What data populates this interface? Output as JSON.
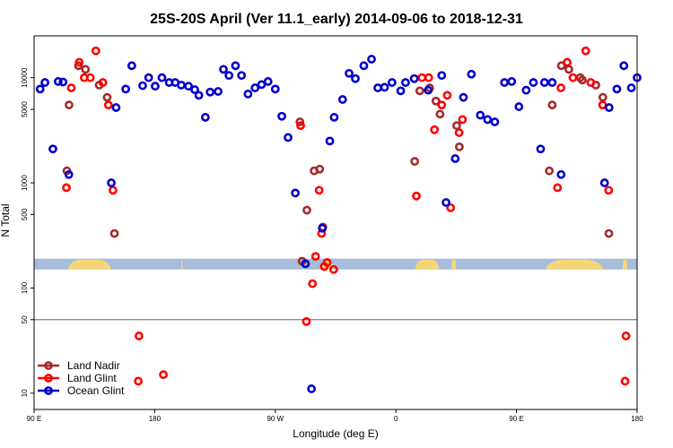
{
  "chart_data": {
    "type": "scatter",
    "title": "25S-20S April (Ver 11.1_early)   2014-09-06 to 2018-12-31",
    "xlabel": "Longitude (deg E)",
    "ylabel": "N Total",
    "x_scale": "linear",
    "y_scale": "log",
    "xlim": [
      90,
      340
    ],
    "ylim": [
      7,
      25000
    ],
    "x_ticks": [
      {
        "value": 90,
        "label": "90 E"
      },
      {
        "value": 140,
        "label": "180"
      },
      {
        "value": 190,
        "label": "90 W"
      },
      {
        "value": 240,
        "label": "0"
      },
      {
        "value": 290,
        "label": "90 E"
      },
      {
        "value": 340,
        "label": "180"
      }
    ],
    "y_ticks": [
      {
        "value": 10,
        "label": "10"
      },
      {
        "value": 50,
        "label": "50"
      },
      {
        "value": 100,
        "label": "100"
      },
      {
        "value": 500,
        "label": "500"
      },
      {
        "value": 1000,
        "label": "1000"
      },
      {
        "value": 5000,
        "label": "5000"
      },
      {
        "value": 10000,
        "label": "10000"
      }
    ],
    "reference_line": {
      "y": 50,
      "color": "#808080"
    },
    "map_strip": {
      "y_range": [
        150,
        190
      ],
      "ocean_color": "#a6bddb",
      "land_color": "#f5d67a"
    },
    "legend": {
      "position": "bottom-left"
    },
    "series": [
      {
        "name": "Land Nadir",
        "color": "#a52a2a",
        "points": [
          [
            103.6,
            1300
          ],
          [
            104.5,
            5500
          ],
          [
            108.4,
            13000
          ],
          [
            111.3,
            12000
          ],
          [
            117,
            8500
          ],
          [
            120.3,
            6500
          ],
          [
            123.3,
            330
          ],
          [
            200.2,
            3800
          ],
          [
            201.1,
            180
          ],
          [
            203.1,
            550
          ],
          [
            206.1,
            1300
          ],
          [
            208.4,
            1350
          ],
          [
            209.7,
            380
          ],
          [
            247.8,
            1600
          ],
          [
            249.9,
            7500
          ],
          [
            254,
            8000
          ],
          [
            256.6,
            6000
          ],
          [
            258.3,
            4500
          ],
          [
            265.2,
            3500
          ],
          [
            266.3,
            2200
          ],
          [
            303.6,
            1300
          ],
          [
            304.8,
            5500
          ],
          [
            308.6,
            13000
          ],
          [
            311.7,
            12000
          ],
          [
            316.4,
            10000
          ],
          [
            317.3,
            9500
          ],
          [
            322.9,
            8500
          ],
          [
            325.8,
            6500
          ],
          [
            328.3,
            330
          ]
        ]
      },
      {
        "name": "Land Glint",
        "color": "#ff0000",
        "points": [
          [
            103.4,
            900
          ],
          [
            105.4,
            8000
          ],
          [
            108.7,
            14000
          ],
          [
            110.8,
            10000
          ],
          [
            113.3,
            10000
          ],
          [
            115.6,
            18000
          ],
          [
            118.5,
            9000
          ],
          [
            120.8,
            5500
          ],
          [
            122.7,
            850
          ],
          [
            133.5,
            35
          ],
          [
            133.2,
            13
          ],
          [
            143.6,
            15
          ],
          [
            200.5,
            3500
          ],
          [
            206.7,
            200
          ],
          [
            211.5,
            175
          ],
          [
            210.3,
            160
          ],
          [
            214.2,
            150
          ],
          [
            205.4,
            110
          ],
          [
            202.9,
            48
          ],
          [
            209.2,
            330
          ],
          [
            208.2,
            850
          ],
          [
            248.5,
            750
          ],
          [
            250.8,
            10000
          ],
          [
            253.6,
            10000
          ],
          [
            256,
            3200
          ],
          [
            259,
            5500
          ],
          [
            261.3,
            6800
          ],
          [
            262.7,
            580
          ],
          [
            266.2,
            3000
          ],
          [
            267.6,
            4000
          ],
          [
            307,
            900
          ],
          [
            308.4,
            8000
          ],
          [
            311,
            14000
          ],
          [
            313.4,
            10000
          ],
          [
            318.7,
            18000
          ],
          [
            320.8,
            9000
          ],
          [
            325.7,
            5500
          ],
          [
            328.2,
            850
          ],
          [
            335.4,
            35
          ],
          [
            335,
            13
          ]
        ]
      },
      {
        "name": "Ocean Glint",
        "color": "#0000cc",
        "points": [
          [
            92.5,
            7800
          ],
          [
            94.5,
            9000
          ],
          [
            97.8,
            2100
          ],
          [
            100,
            9200
          ],
          [
            102,
            9100
          ],
          [
            104.4,
            1200
          ],
          [
            122,
            1000
          ],
          [
            124,
            5200
          ],
          [
            128,
            7800
          ],
          [
            130.5,
            13000
          ],
          [
            135,
            8400
          ],
          [
            137.5,
            10000
          ],
          [
            140.2,
            8300
          ],
          [
            143,
            10000
          ],
          [
            146,
            9000
          ],
          [
            148.5,
            9000
          ],
          [
            151,
            8500
          ],
          [
            154,
            8300
          ],
          [
            156.6,
            7700
          ],
          [
            158.3,
            6800
          ],
          [
            161,
            4200
          ],
          [
            163,
            7300
          ],
          [
            166.3,
            7400
          ],
          [
            168.5,
            12000
          ],
          [
            170.8,
            10500
          ],
          [
            173.5,
            13000
          ],
          [
            176,
            10500
          ],
          [
            178.7,
            7000
          ],
          [
            181.6,
            8000
          ],
          [
            184.3,
            8600
          ],
          [
            187,
            9200
          ],
          [
            190,
            7800
          ],
          [
            192.7,
            4300
          ],
          [
            195.3,
            2700
          ],
          [
            198.3,
            800
          ],
          [
            202.5,
            170
          ],
          [
            205,
            11
          ],
          [
            209.5,
            370
          ],
          [
            212.6,
            2500
          ],
          [
            214.4,
            4200
          ],
          [
            217.9,
            6200
          ],
          [
            220.6,
            11000
          ],
          [
            223.2,
            9800
          ],
          [
            226.7,
            13000
          ],
          [
            229.9,
            15000
          ],
          [
            232.5,
            8000
          ],
          [
            235.3,
            8100
          ],
          [
            238.4,
            9000
          ],
          [
            242,
            7500
          ],
          [
            244,
            9000
          ],
          [
            247.6,
            9800
          ],
          [
            253.4,
            7600
          ],
          [
            259,
            10500
          ],
          [
            260.8,
            650
          ],
          [
            264.6,
            1700
          ],
          [
            268,
            6500
          ],
          [
            271.3,
            10800
          ],
          [
            275,
            4400
          ],
          [
            278,
            4000
          ],
          [
            281,
            3800
          ],
          [
            285,
            9000
          ],
          [
            288,
            9200
          ],
          [
            291,
            5300
          ],
          [
            294,
            7600
          ],
          [
            297,
            9000
          ],
          [
            300,
            2100
          ],
          [
            301.6,
            9000
          ],
          [
            304.8,
            9000
          ],
          [
            308.5,
            1200
          ],
          [
            326.5,
            1000
          ],
          [
            328.4,
            5200
          ],
          [
            331.6,
            7800
          ],
          [
            334.5,
            13000
          ],
          [
            337.6,
            8000
          ],
          [
            340,
            10000
          ]
        ]
      }
    ]
  }
}
